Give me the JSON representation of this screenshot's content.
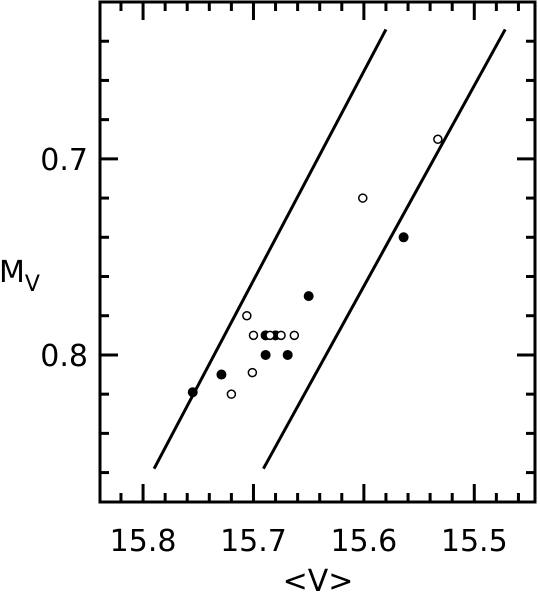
{
  "chart_data": {
    "type": "scatter",
    "title": "",
    "xlabel": "<V>",
    "ylabel": "M",
    "ylabel_sub": "V",
    "xlim": [
      15.839,
      15.445
    ],
    "ylim": [
      0.875,
      0.62
    ],
    "x_ticks": [
      15.8,
      15.7,
      15.6,
      15.5
    ],
    "x_tick_labels": [
      "15.8",
      "15.7",
      "15.6",
      "15.5"
    ],
    "y_ticks": [
      0.7,
      0.8
    ],
    "y_tick_labels": [
      "0.7",
      "0.8"
    ],
    "x_minor_step": 0.02,
    "y_minor_step": 0.02,
    "grid": false,
    "series": [
      {
        "marker": "filled-circle",
        "points": [
          {
            "x": 15.755,
            "y": 0.819
          },
          {
            "x": 15.729,
            "y": 0.81
          },
          {
            "x": 15.689,
            "y": 0.8
          },
          {
            "x": 15.689,
            "y": 0.79
          },
          {
            "x": 15.68,
            "y": 0.79
          },
          {
            "x": 15.669,
            "y": 0.8
          },
          {
            "x": 15.65,
            "y": 0.77
          },
          {
            "x": 15.564,
            "y": 0.74
          }
        ]
      },
      {
        "marker": "open-circle",
        "points": [
          {
            "x": 15.72,
            "y": 0.82
          },
          {
            "x": 15.706,
            "y": 0.78
          },
          {
            "x": 15.7,
            "y": 0.79
          },
          {
            "x": 15.701,
            "y": 0.809
          },
          {
            "x": 15.685,
            "y": 0.79
          },
          {
            "x": 15.675,
            "y": 0.79
          },
          {
            "x": 15.663,
            "y": 0.79
          },
          {
            "x": 15.601,
            "y": 0.72
          },
          {
            "x": 15.533,
            "y": 0.69
          }
        ]
      }
    ],
    "lines": [
      {
        "x1": 15.79,
        "y1": 0.858,
        "x2": 15.58,
        "y2": 0.634
      },
      {
        "x1": 15.691,
        "y1": 0.858,
        "x2": 15.472,
        "y2": 0.634
      }
    ]
  }
}
